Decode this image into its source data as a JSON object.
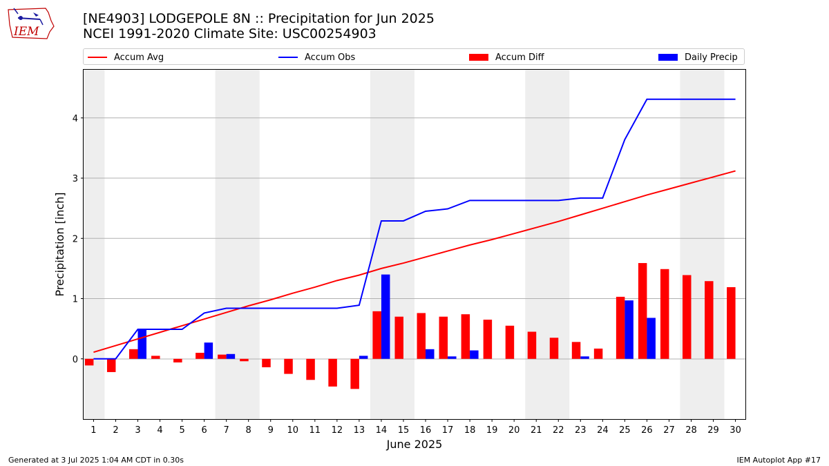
{
  "title": {
    "line1": "[NE4903] LODGEPOLE 8N :: Precipitation for Jun 2025",
    "line2": "NCEI 1991-2020 Climate Site: USC00254903"
  },
  "logo": {
    "text": "IEM",
    "icon": "iowa-environmental-mesonet-logo"
  },
  "footer": {
    "generated": "Generated at 3 Jul 2025 1:04 AM CDT in 0.30s",
    "app": "IEM Autoplot App #17"
  },
  "colors": {
    "avg": "#ff0000",
    "obs": "#0000ff",
    "diff": "#ff0000",
    "daily": "#0000ff",
    "weekend_band": "#eeeeee",
    "grid": "#b0b0b0"
  },
  "chart_data": {
    "type": "bar",
    "xlabel": "June 2025",
    "ylabel": "Precipitation [inch]",
    "ylim": [
      -1,
      4.8
    ],
    "yticks": [
      0,
      1,
      2,
      3,
      4
    ],
    "grid": "horizontal",
    "legend_placement": "top",
    "weekend_bands": [
      [
        0.5,
        1.5
      ],
      [
        6.5,
        8.5
      ],
      [
        13.5,
        15.5
      ],
      [
        20.5,
        22.5
      ],
      [
        27.5,
        29.5
      ]
    ],
    "x": [
      1,
      2,
      3,
      4,
      5,
      6,
      7,
      8,
      9,
      10,
      11,
      12,
      13,
      14,
      15,
      16,
      17,
      18,
      19,
      20,
      21,
      22,
      23,
      24,
      25,
      26,
      27,
      28,
      29,
      30
    ],
    "series": [
      {
        "name": "Accum Avg",
        "kind": "line",
        "values": [
          0.11,
          0.22,
          0.33,
          0.44,
          0.55,
          0.66,
          0.77,
          0.88,
          0.98,
          1.09,
          1.19,
          1.3,
          1.39,
          1.5,
          1.59,
          1.69,
          1.79,
          1.89,
          1.98,
          2.08,
          2.18,
          2.28,
          2.39,
          2.5,
          2.61,
          2.72,
          2.82,
          2.92,
          3.02,
          3.12
        ]
      },
      {
        "name": "Accum Obs",
        "kind": "line",
        "values": [
          0.0,
          0.0,
          0.49,
          0.49,
          0.49,
          0.76,
          0.84,
          0.84,
          0.84,
          0.84,
          0.84,
          0.84,
          0.89,
          2.29,
          2.29,
          2.45,
          2.49,
          2.63,
          2.63,
          2.63,
          2.63,
          2.63,
          2.67,
          2.67,
          3.64,
          4.31,
          4.31,
          4.31,
          4.31,
          4.31
        ]
      },
      {
        "name": "Accum Diff",
        "kind": "bar",
        "values": [
          -0.11,
          -0.22,
          0.16,
          0.05,
          -0.06,
          0.1,
          0.07,
          -0.04,
          -0.14,
          -0.25,
          -0.35,
          -0.46,
          -0.5,
          0.79,
          0.7,
          0.76,
          0.7,
          0.74,
          0.65,
          0.55,
          0.45,
          0.35,
          0.28,
          0.17,
          1.03,
          1.59,
          1.49,
          1.39,
          1.29,
          1.19
        ]
      },
      {
        "name": "Daily Precip",
        "kind": "bar",
        "values": [
          0.0,
          0.0,
          0.49,
          0.0,
          0.0,
          0.27,
          0.08,
          0.0,
          0.0,
          0.0,
          0.0,
          0.0,
          0.05,
          1.4,
          0.0,
          0.16,
          0.04,
          0.14,
          0.0,
          0.0,
          0.0,
          0.0,
          0.04,
          0.0,
          0.97,
          0.68,
          0.0,
          0.0,
          0.0,
          0.0
        ]
      }
    ]
  }
}
